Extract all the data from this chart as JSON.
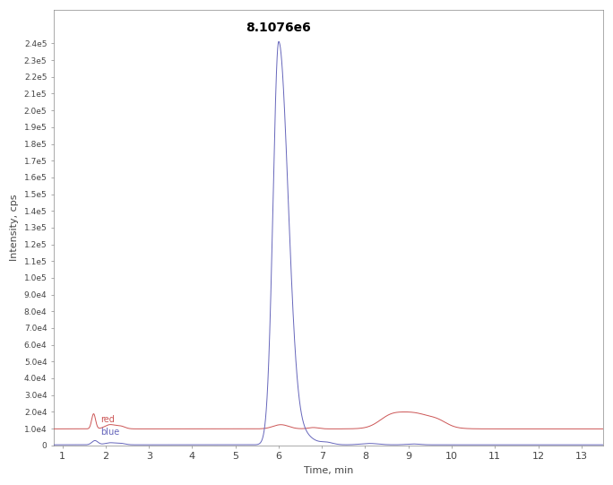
{
  "title": "8.1076e6",
  "xlabel": "Time, min",
  "ylabel": "Intensity, cps",
  "xlim": [
    0.8,
    13.5
  ],
  "ylim": [
    0,
    260000.0
  ],
  "background_color": "#ffffff",
  "plot_bg_color": "#ffffff",
  "blue_color": "#6666bb",
  "red_color": "#cc5555",
  "yticks": [
    0,
    10000.0,
    20000.0,
    30000.0,
    40000.0,
    50000.0,
    60000.0,
    70000.0,
    80000.0,
    90000.0,
    100000.0,
    110000.0,
    120000.0,
    130000.0,
    140000.0,
    150000.0,
    160000.0,
    170000.0,
    180000.0,
    190000.0,
    200000.0,
    210000.0,
    220000.0,
    230000.0,
    240000.0
  ],
  "ytick_labels": [
    "0",
    "1.0e4",
    "2.0e4",
    "3.0e4",
    "4.0e4",
    "5.0e4",
    "6.0e4",
    "7.0e4",
    "8.0e4",
    "9.0e4",
    "1.0e5",
    "1.1e5",
    "1.2e5",
    "1.3e5",
    "1.4e5",
    "1.5e5",
    "1.6e5",
    "1.7e5",
    "1.8e5",
    "1.9e5",
    "2.0e5",
    "2.1e5",
    "2.2e5",
    "2.3e5",
    "2.4e5"
  ],
  "xticks": [
    1,
    2,
    3,
    4,
    5,
    6,
    7,
    8,
    9,
    10,
    11,
    12,
    13
  ],
  "peak_time": 6.0,
  "peak_intensity": 240760.0,
  "legend_red": "red",
  "legend_blue": "blue"
}
